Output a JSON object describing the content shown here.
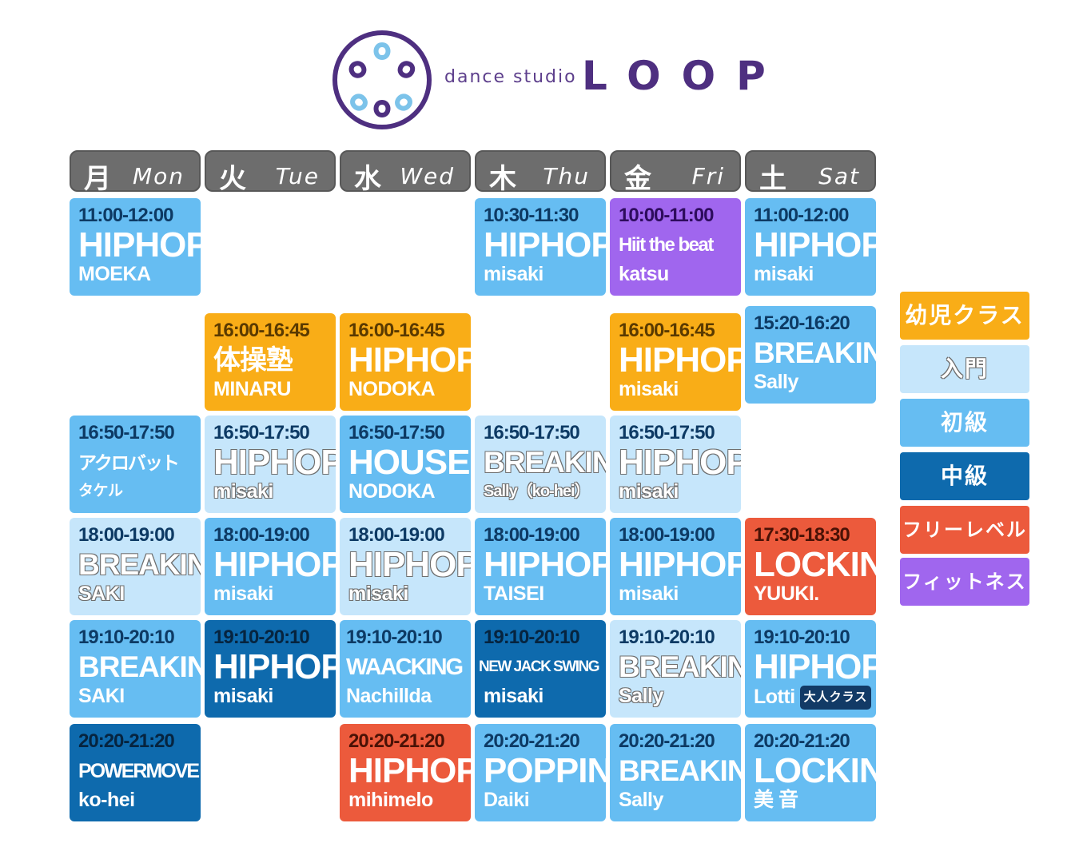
{
  "brand": {
    "small": "dance studio",
    "big": "LOOP",
    "colors": {
      "purple": "#4e2f80",
      "lightblue": "#7cc3ea"
    }
  },
  "days": [
    {
      "kanji": "月",
      "en": "Mon"
    },
    {
      "kanji": "火",
      "en": "Tue"
    },
    {
      "kanji": "水",
      "en": "Wed"
    },
    {
      "kanji": "木",
      "en": "Thu"
    },
    {
      "kanji": "金",
      "en": "Fri"
    },
    {
      "kanji": "土",
      "en": "Sat"
    }
  ],
  "level_colors": {
    "kids": "#f9ad17",
    "intro": "#c6e6fb",
    "beginner": "#66bdf2",
    "intermediate": "#0e6aad",
    "free": "#ec5a3c",
    "fitness": "#a066ee"
  },
  "schedule": {
    "mon": [
      {
        "time": "11:00-12:00",
        "name": "HIPHOP",
        "instructor": "MOEKA"
      },
      {
        "time": "16:50-17:50",
        "name": "アクロバット",
        "instructor": "タケル"
      },
      {
        "time": "18:00-19:00",
        "name": "BREAKIN'",
        "instructor": "SAKI"
      },
      {
        "time": "19:10-20:10",
        "name": "BREAKIN'",
        "instructor": "SAKI"
      },
      {
        "time": "20:20-21:20",
        "name": "POWERMOVE",
        "instructor": "ko-hei"
      }
    ],
    "tue": [
      {
        "time": "16:00-16:45",
        "name": "体操塾",
        "instructor": "MINARU"
      },
      {
        "time": "16:50-17:50",
        "name": "HIPHOP",
        "instructor": "misaki"
      },
      {
        "time": "18:00-19:00",
        "name": "HIPHOP",
        "instructor": "misaki"
      },
      {
        "time": "19:10-20:10",
        "name": "HIPHOP",
        "instructor": "misaki"
      }
    ],
    "wed": [
      {
        "time": "16:00-16:45",
        "name": "HIPHOP",
        "instructor": "NODOKA"
      },
      {
        "time": "16:50-17:50",
        "name": "HOUSE",
        "instructor": "NODOKA"
      },
      {
        "time": "18:00-19:00",
        "name": "HIPHOP",
        "instructor": "misaki"
      },
      {
        "time": "19:10-20:10",
        "name": "WAACKING",
        "instructor": "Nachillda"
      },
      {
        "time": "20:20-21:20",
        "name": "HIPHOP",
        "instructor": "mihimelo"
      }
    ],
    "thu": [
      {
        "time": "10:30-11:30",
        "name": "HIPHOP",
        "instructor": "misaki"
      },
      {
        "time": "16:50-17:50",
        "name": "BREAKIN'",
        "instructor": "Sally（ko-hei）"
      },
      {
        "time": "18:00-19:00",
        "name": "HIPHOP",
        "instructor": "TAISEI"
      },
      {
        "time": "19:10-20:10",
        "name": "NEW JACK SWING",
        "instructor": "misaki"
      },
      {
        "time": "20:20-21:20",
        "name": "POPPIN",
        "instructor": "Daiki"
      }
    ],
    "fri": [
      {
        "time": "10:00-11:00",
        "name": "Hiit the beat",
        "instructor": "katsu"
      },
      {
        "time": "16:00-16:45",
        "name": "HIPHOP",
        "instructor": "misaki"
      },
      {
        "time": "16:50-17:50",
        "name": "HIPHOP",
        "instructor": "misaki"
      },
      {
        "time": "18:00-19:00",
        "name": "HIPHOP",
        "instructor": "misaki"
      },
      {
        "time": "19:10-20:10",
        "name": "BREAKIN'",
        "instructor": "Sally"
      },
      {
        "time": "20:20-21:20",
        "name": "BREAKIN'",
        "instructor": "Sally"
      }
    ],
    "sat": [
      {
        "time": "11:00-12:00",
        "name": "HIPHOP",
        "instructor": "misaki"
      },
      {
        "time": "15:20-16:20",
        "name": "BREAKIN'",
        "instructor": "Sally"
      },
      {
        "time": "17:30-18:30",
        "name": "LOCKIN",
        "instructor": "YUUKI."
      },
      {
        "time": "19:10-20:10",
        "name": "HIPHOP",
        "instructor": "Lotti",
        "tag": "大人クラス"
      },
      {
        "time": "20:20-21:20",
        "name": "LOCKIN",
        "instructor": "美 音"
      }
    ]
  },
  "legend": [
    {
      "label": "幼児クラス",
      "color": "#f9ad17"
    },
    {
      "label": "入門",
      "color": "#c6e6fb"
    },
    {
      "label": "初級",
      "color": "#66bdf2"
    },
    {
      "label": "中級",
      "color": "#0e6aad"
    },
    {
      "label": "フリーレベル",
      "color": "#ec5a3c"
    },
    {
      "label": "フィットネス",
      "color": "#a066ee"
    }
  ]
}
